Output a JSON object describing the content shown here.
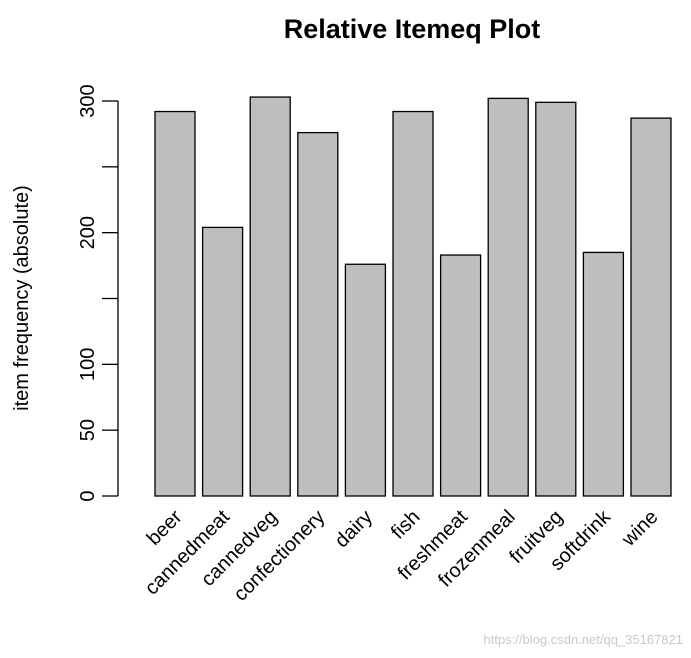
{
  "chart_data": {
    "type": "bar",
    "title": "Relative Itemeq Plot",
    "y_label": "item frequency (absolute)",
    "categories": [
      "beer",
      "cannedmeat",
      "cannedveg",
      "confectionery",
      "dairy",
      "fish",
      "freshmeat",
      "frozenmeal",
      "fruitveg",
      "softdrink",
      "wine"
    ],
    "values": [
      292,
      204,
      303,
      276,
      176,
      292,
      183,
      302,
      299,
      185,
      287
    ],
    "color": "#bebebe",
    "ylim": [
      0,
      300
    ],
    "yticks": [
      0,
      50,
      100,
      200,
      300
    ],
    "yticks_unlabeled": [
      150,
      250
    ],
    "watermark": "https://blog.csdn.net/qq_35167821"
  }
}
